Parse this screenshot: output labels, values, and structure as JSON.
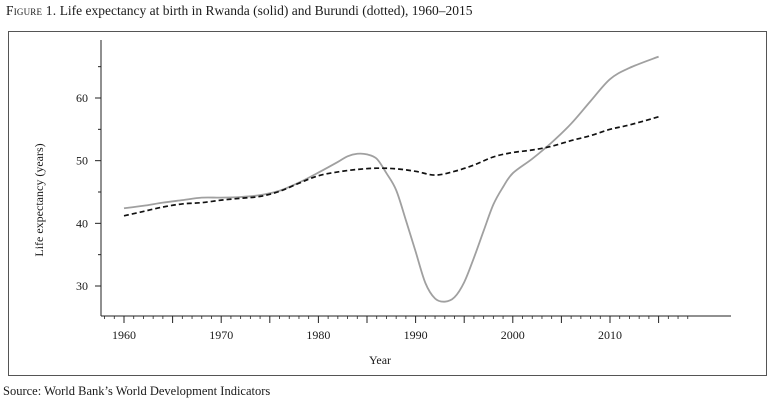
{
  "figure": {
    "label": "Figure 1.",
    "caption": "Life expectancy at birth in Rwanda (solid) and Burundi (dotted), 1960–2015",
    "source": "Source: World Bank’s World Development Indicators"
  },
  "chart_data": {
    "type": "line",
    "title": "",
    "xlabel": "Year",
    "ylabel": "Life expectancy (years)",
    "xlim": [
      1958,
      2018
    ],
    "ylim": [
      25,
      69
    ],
    "x_ticks": [
      1960,
      1970,
      1980,
      1990,
      2000,
      2010
    ],
    "y_ticks": [
      30,
      40,
      50,
      60
    ],
    "grid": false,
    "series": [
      {
        "name": "Rwanda",
        "style": "solid",
        "color": "#a0a0a0",
        "x": [
          1960,
          1962,
          1964,
          1966,
          1968,
          1970,
          1972,
          1974,
          1976,
          1978,
          1980,
          1982,
          1983,
          1984,
          1985,
          1986,
          1987,
          1988,
          1989,
          1990,
          1991,
          1992,
          1993,
          1994,
          1995,
          1996,
          1997,
          1998,
          1999,
          2000,
          2002,
          2004,
          2006,
          2008,
          2010,
          2012,
          2015
        ],
        "y": [
          42.4,
          42.8,
          43.3,
          43.7,
          44.1,
          44.1,
          44.2,
          44.5,
          45.2,
          46.5,
          48.1,
          49.8,
          50.7,
          51.1,
          51.0,
          50.3,
          48.0,
          45.3,
          40.5,
          35.5,
          30.5,
          28.0,
          27.5,
          28.2,
          30.6,
          34.5,
          38.8,
          43.0,
          45.8,
          48.0,
          50.3,
          52.9,
          55.9,
          59.5,
          63.0,
          64.8,
          66.6
        ]
      },
      {
        "name": "Burundi",
        "style": "dotted",
        "color": "#111111",
        "x": [
          1960,
          1962,
          1964,
          1966,
          1968,
          1970,
          1972,
          1974,
          1976,
          1978,
          1980,
          1982,
          1984,
          1986,
          1988,
          1990,
          1992,
          1994,
          1996,
          1998,
          2000,
          2002,
          2004,
          2006,
          2008,
          2010,
          2012,
          2015
        ],
        "y": [
          41.2,
          41.9,
          42.6,
          43.1,
          43.3,
          43.7,
          44.0,
          44.3,
          45.1,
          46.4,
          47.6,
          48.2,
          48.6,
          48.8,
          48.7,
          48.3,
          47.7,
          48.3,
          49.3,
          50.6,
          51.3,
          51.7,
          52.3,
          53.2,
          54.0,
          55.0,
          55.7,
          57.0
        ]
      }
    ]
  }
}
